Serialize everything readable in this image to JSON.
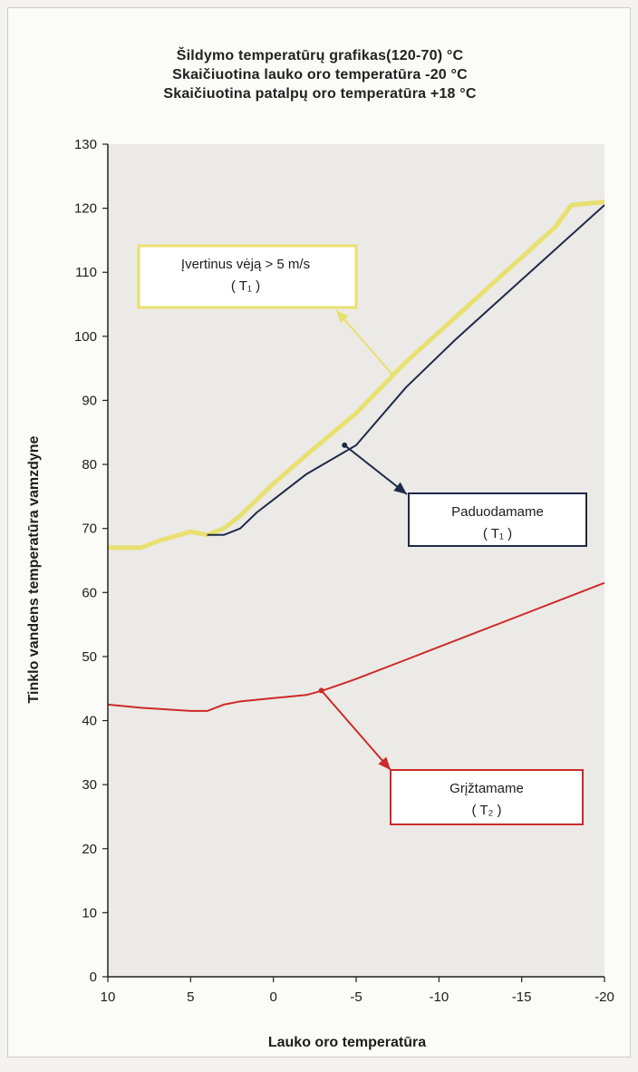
{
  "chart_data": {
    "type": "line",
    "title": "Šildymo temperatūrų grafikas(120-70) °C",
    "subtitle_lines": [
      "Skaičiuotina lauko oro temperatūra -20 °C",
      "Skaičiuotina patalpų oro temperatūra +18 °C"
    ],
    "xlabel": "Lauko oro temperatūra",
    "ylabel": "Tinklo vandens temperatūra vamzdyne",
    "xlim": [
      10,
      -20
    ],
    "ylim": [
      0,
      130
    ],
    "xticks": [
      10,
      5,
      0,
      -5,
      -10,
      -15,
      -20
    ],
    "yticks": [
      0,
      10,
      20,
      30,
      40,
      50,
      60,
      70,
      80,
      90,
      100,
      110,
      120,
      130
    ],
    "grid": false,
    "legend": "none",
    "series": [
      {
        "name": "Įvertinus vėją > 5 m/s (T1)",
        "color": "#e8e070",
        "x": [
          10,
          8,
          7,
          5,
          4,
          3,
          2,
          1,
          0,
          -2,
          -5,
          -8,
          -11,
          -14,
          -17,
          -18,
          -20
        ],
        "y": [
          67,
          67,
          68,
          69.5,
          69,
          70,
          72,
          74.5,
          77,
          81.5,
          88,
          96,
          103,
          110,
          117,
          120.5,
          121
        ]
      },
      {
        "name": "Paduodamame (T1)",
        "color": "#1f2a4a",
        "x": [
          4,
          3,
          2,
          1,
          0,
          -2,
          -5,
          -8,
          -11,
          -14,
          -17,
          -20
        ],
        "y": [
          69,
          69,
          70,
          72.5,
          74.5,
          78.5,
          83,
          92,
          99.5,
          106.5,
          113.5,
          120.5
        ]
      },
      {
        "name": "Grįžtamame (T2)",
        "color": "#cc2a2a",
        "x": [
          10,
          8,
          5,
          4,
          3,
          2,
          0,
          -2,
          -3,
          -5,
          -8,
          -10,
          -12,
          -15,
          -18,
          -20
        ],
        "y": [
          42.5,
          42,
          41.5,
          41.5,
          42.5,
          43,
          43.5,
          44,
          44.7,
          46.5,
          49.5,
          51.5,
          53.5,
          56.5,
          59.5,
          61.5
        ]
      }
    ],
    "annotations": [
      {
        "line1": "Įvertinus vėją > 5 m/s",
        "line2": "( T₁ )",
        "color": "#e8e070",
        "anchor_x": -7.2,
        "anchor_y": 94
      },
      {
        "line1": "Paduodamame",
        "line2": "( T₁ )",
        "color": "#1f2a4a",
        "anchor_x": -4.3,
        "anchor_y": 83
      },
      {
        "line1": "Grįžtamame",
        "line2": "( T₂ )",
        "color": "#cc2a2a",
        "anchor_x": -2.9,
        "anchor_y": 44.7
      }
    ]
  }
}
